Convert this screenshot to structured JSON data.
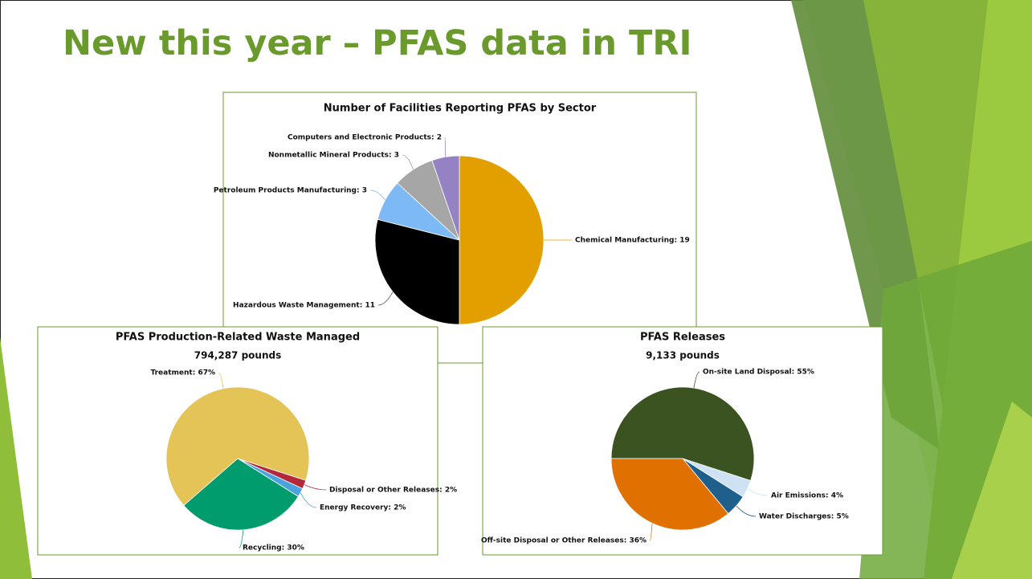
{
  "title": "New this year – PFAS data in TRI",
  "chart_data": [
    {
      "type": "pie",
      "title": "Number of Facilities Reporting PFAS by Sector",
      "values": [
        19,
        11,
        3,
        3,
        2
      ],
      "value_labels": [
        "Chemical Manufacturing: 19",
        "Hazardous Waste Management: 11",
        "Petroleum Products Manufacturing: 3",
        "Nonmetallic Mineral Products: 3",
        "Computers and Electronic Products: 2"
      ],
      "colors": [
        "#e39f00",
        "#000000",
        "#7cb9f5",
        "#a6a6a6",
        "#9482c5"
      ]
    },
    {
      "type": "pie",
      "title": "PFAS Production-Related Waste Managed",
      "subtitle": "794,287 pounds",
      "values": [
        67,
        2,
        2,
        30
      ],
      "value_labels": [
        "Treatment: 67%",
        "Disposal or Other Releases: 2%",
        "Energy Recovery: 2%",
        "Recycling: 30%"
      ],
      "colors": [
        "#e4c357",
        "#b3283a",
        "#4aa3df",
        "#009c6e"
      ]
    },
    {
      "type": "pie",
      "title": "PFAS Releases",
      "subtitle": "9,133 pounds",
      "values": [
        55,
        4,
        5,
        36
      ],
      "value_labels": [
        "On-site Land Disposal: 55%",
        "Air Emissions: 4%",
        "Water Discharges: 5%",
        "Off-site Disposal or Other Releases: 36%"
      ],
      "colors": [
        "#3a5320",
        "#cfe2f3",
        "#1f5f8b",
        "#e07000"
      ]
    }
  ]
}
